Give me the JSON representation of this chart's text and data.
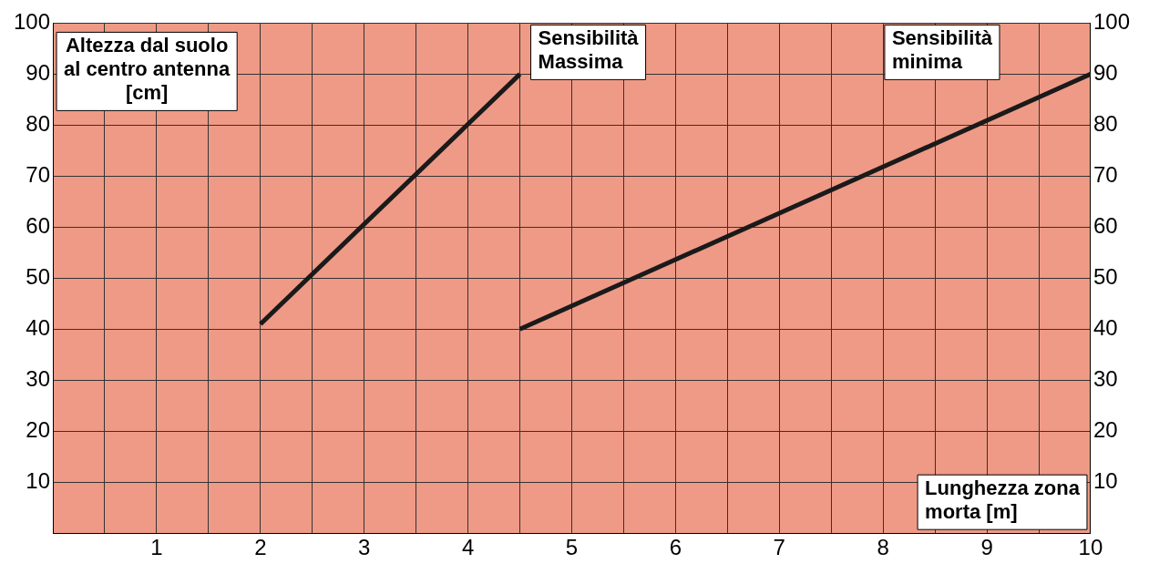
{
  "chart_data": {
    "type": "line",
    "xlabel": "Lunghezza zona morta [m]",
    "ylabel": "Altezza dal suolo al centro antenna [cm]",
    "series": [
      {
        "name": "Sensibilità Massima",
        "color": "#1a1a1a",
        "x": [
          2,
          4.5
        ],
        "values": [
          41,
          90
        ]
      },
      {
        "name": "Sensibilità minima",
        "color": "#1a1a1a",
        "x": [
          4.5,
          10
        ],
        "values": [
          40,
          90
        ]
      }
    ],
    "xlim": [
      0,
      10
    ],
    "xticks": [
      {
        "value": 0.5,
        "label": null
      },
      1,
      {
        "value": 1.5,
        "label": null
      },
      2,
      {
        "value": 2.5,
        "label": null
      },
      3,
      {
        "value": 3.5,
        "label": null
      },
      4,
      {
        "value": 4.5,
        "label": null
      },
      5,
      {
        "value": 5.5,
        "label": null
      },
      6,
      {
        "value": 6.5,
        "label": null
      },
      7,
      {
        "value": 7.5,
        "label": null
      },
      8,
      {
        "value": 8.5,
        "label": null
      },
      9,
      {
        "value": 9.5,
        "label": null
      },
      10
    ],
    "ylim": [
      0,
      100
    ],
    "yticks": [
      10,
      20,
      30,
      40,
      50,
      60,
      70,
      80,
      90,
      100
    ],
    "y2lim": [
      0,
      100
    ],
    "y2ticks": [
      10,
      20,
      30,
      40,
      50,
      60,
      70,
      80,
      90,
      100
    ],
    "grid": true,
    "legend": false,
    "marker": "none",
    "line_style": "solid"
  }
}
